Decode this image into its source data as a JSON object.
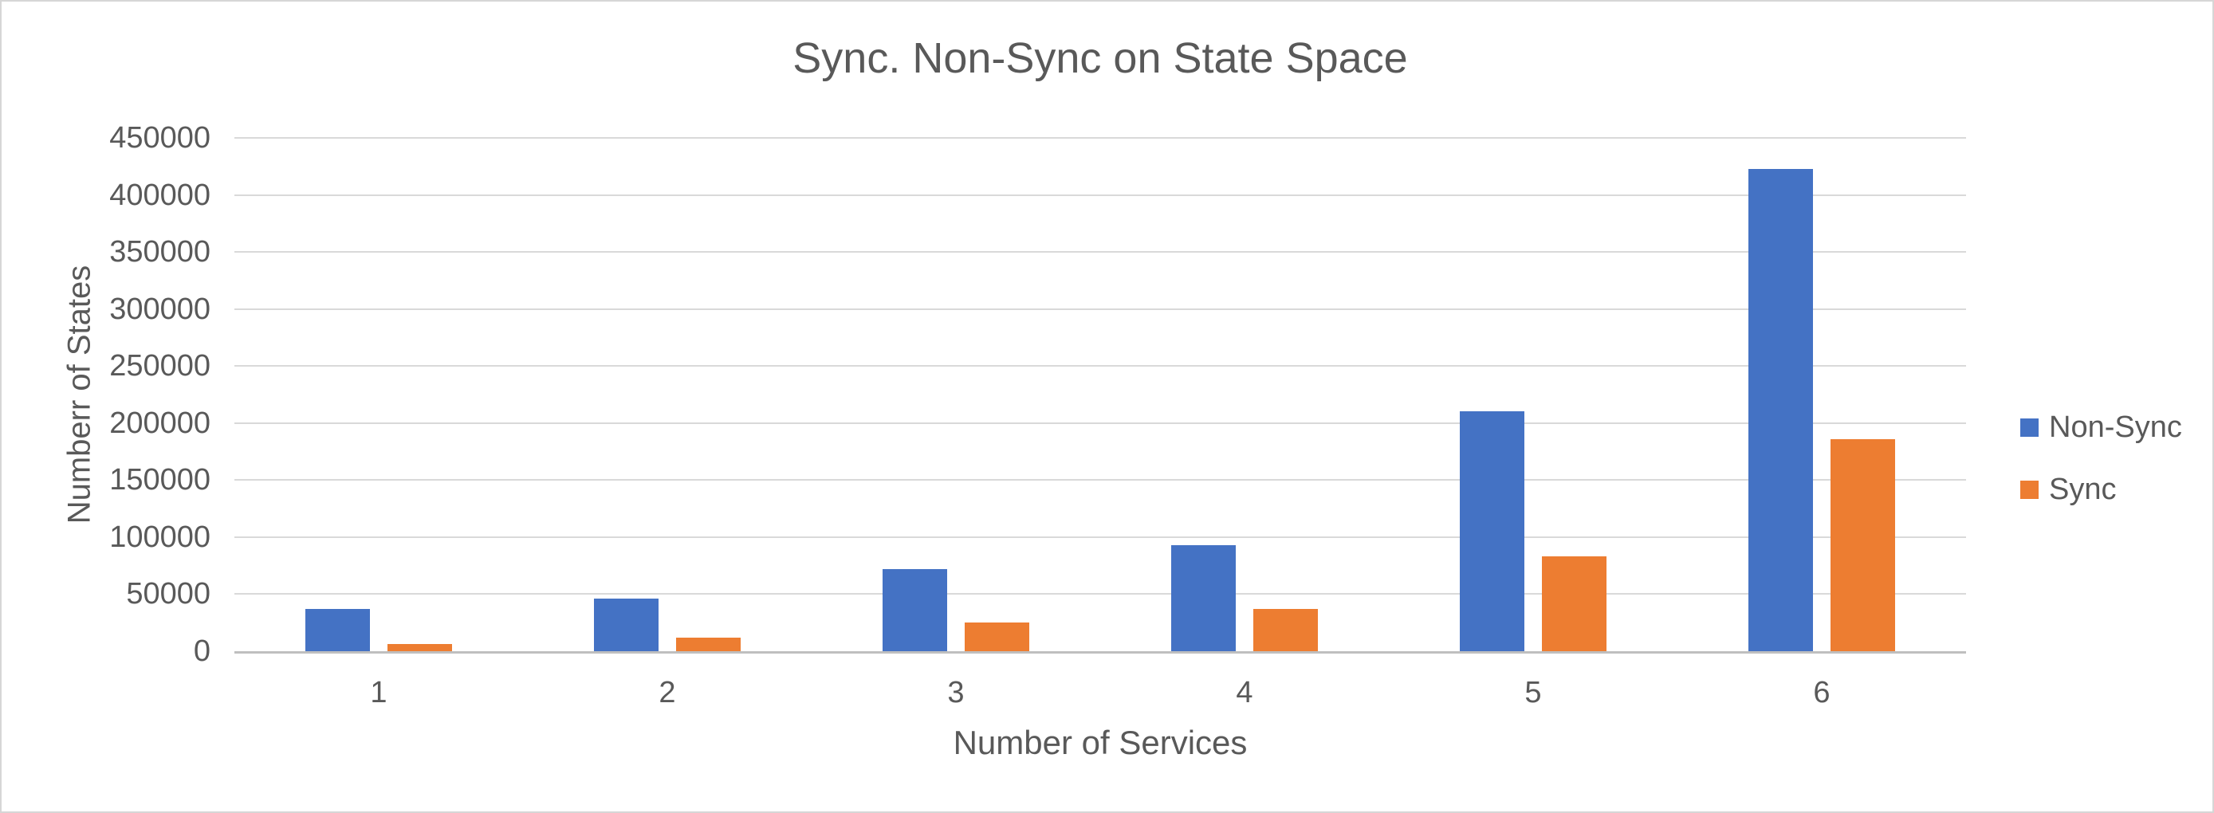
{
  "chart_data": {
    "type": "bar",
    "title": "Sync. Non-Sync on State Space",
    "xlabel": "Number of Services",
    "ylabel": "Numberr of States",
    "categories": [
      "1",
      "2",
      "3",
      "4",
      "5",
      "6"
    ],
    "series": [
      {
        "name": "Non-Sync",
        "color": "#4472C4",
        "values": [
          37000,
          46000,
          72000,
          93000,
          210000,
          423000
        ]
      },
      {
        "name": "Sync",
        "color": "#ED7D31",
        "values": [
          6000,
          12000,
          25000,
          37000,
          83000,
          186000
        ]
      }
    ],
    "ylim": [
      0,
      450000
    ],
    "ytick_step": 50000,
    "yticks": [
      "0",
      "50000",
      "100000",
      "150000",
      "200000",
      "250000",
      "300000",
      "350000",
      "400000",
      "450000"
    ],
    "grid": true,
    "legend_position": "right",
    "colors": {
      "grid": "#D9D9D9",
      "axis_line": "#BFBFBF",
      "text": "#595959",
      "background": "#FFFFFF"
    }
  }
}
